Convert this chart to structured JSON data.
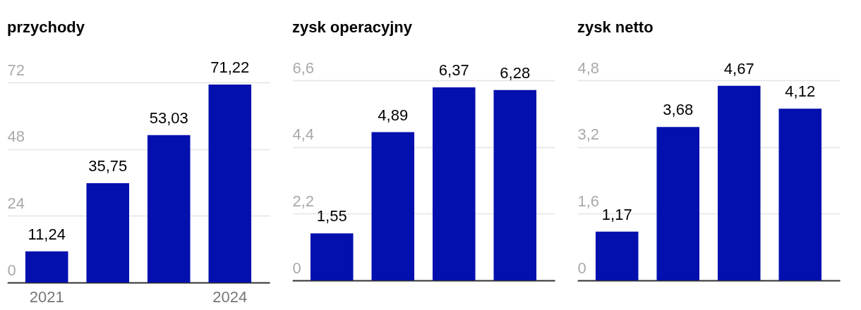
{
  "chart_data": [
    {
      "type": "bar",
      "title": "przychody",
      "categories": [
        "2021",
        null,
        null,
        "2024"
      ],
      "values": [
        11.24,
        35.75,
        53.03,
        71.22
      ],
      "color": "#0410ae",
      "value_labels": [
        "11,24",
        "35,75",
        "53,03",
        "71,22"
      ],
      "ylim": [
        0,
        72
      ],
      "yticks": [
        0,
        24,
        48,
        72
      ],
      "grid": "y"
    },
    {
      "type": "bar",
      "title": "zysk operacyjny",
      "categories": [
        null,
        null,
        null,
        null
      ],
      "values": [
        1.55,
        4.89,
        6.37,
        6.28
      ],
      "color": "#0410ae",
      "value_labels": [
        "1,55",
        "4,89",
        "6,37",
        "6,28"
      ],
      "ylim": [
        0,
        6.6
      ],
      "yticks": [
        0,
        {
          "value": 2.2,
          "label": "2,2"
        },
        {
          "value": 4.4,
          "label": "4,4"
        },
        {
          "value": 6.6,
          "label": "6,6"
        }
      ],
      "grid": "y",
      "tick_labels": "y"
    },
    {
      "type": "bar",
      "title": "zysk netto",
      "categories": [
        null,
        null,
        null,
        null
      ],
      "values": [
        1.17,
        3.68,
        4.67,
        4.12
      ],
      "color": "#0410ae",
      "value_labels": [
        "1,17",
        "3,68",
        "4,67",
        "4,12"
      ],
      "ylim": [
        0,
        4.8
      ],
      "yticks": [
        0,
        {
          "value": 1.6,
          "label": "1,6"
        },
        {
          "value": 3.2,
          "label": "3,2"
        },
        {
          "value": 4.8,
          "label": "4,8"
        }
      ],
      "grid": "y",
      "tick_labels": "y"
    }
  ]
}
